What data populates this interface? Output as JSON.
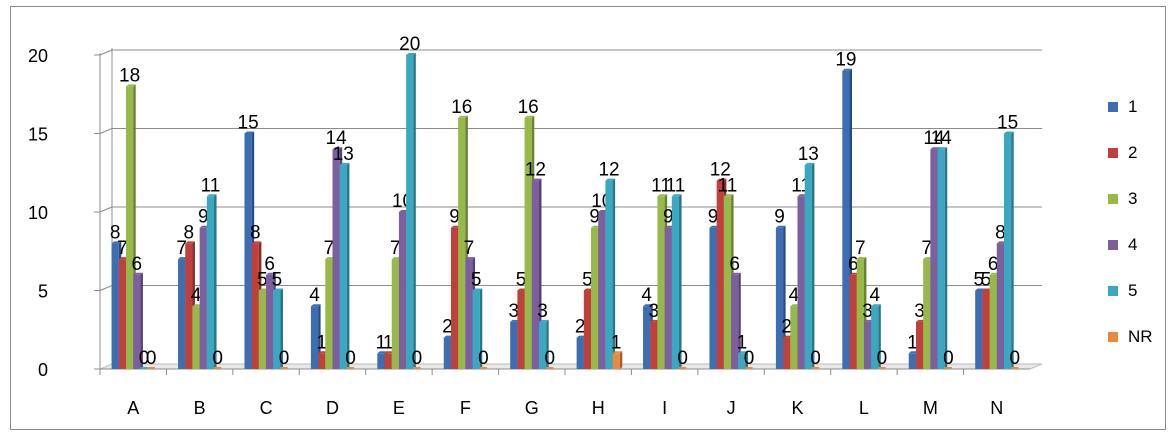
{
  "chart_data": {
    "type": "bar",
    "title": "",
    "xlabel": "",
    "ylabel": "",
    "ylim": [
      0,
      20
    ],
    "yticks": [
      0,
      5,
      10,
      15,
      20
    ],
    "grid": true,
    "legend_position": "right",
    "categories": [
      "A",
      "B",
      "C",
      "D",
      "E",
      "F",
      "G",
      "H",
      "I",
      "J",
      "K",
      "L",
      "M",
      "N"
    ],
    "series": [
      {
        "name": "1",
        "color": "#3c6eb4",
        "values": [
          8,
          7,
          15,
          4,
          1,
          2,
          3,
          2,
          4,
          9,
          9,
          19,
          1,
          5
        ]
      },
      {
        "name": "2",
        "color": "#c0413c",
        "values": [
          7,
          8,
          8,
          1,
          1,
          9,
          5,
          5,
          3,
          12,
          2,
          6,
          3,
          5
        ]
      },
      {
        "name": "3",
        "color": "#97b94a",
        "values": [
          18,
          4,
          5,
          7,
          7,
          16,
          16,
          9,
          11,
          11,
          4,
          7,
          7,
          6
        ]
      },
      {
        "name": "4",
        "color": "#7d5fa0",
        "values": [
          6,
          9,
          6,
          14,
          10,
          7,
          12,
          10,
          9,
          6,
          11,
          3,
          14,
          8
        ]
      },
      {
        "name": "5",
        "color": "#3aa8c1",
        "values": [
          0,
          11,
          5,
          13,
          20,
          5,
          3,
          12,
          11,
          1,
          13,
          4,
          14,
          15
        ]
      },
      {
        "name": "NR",
        "color": "#e9893a",
        "values": [
          0,
          0,
          0,
          0,
          0,
          0,
          0,
          1,
          0,
          0,
          0,
          0,
          0,
          0
        ]
      }
    ]
  }
}
